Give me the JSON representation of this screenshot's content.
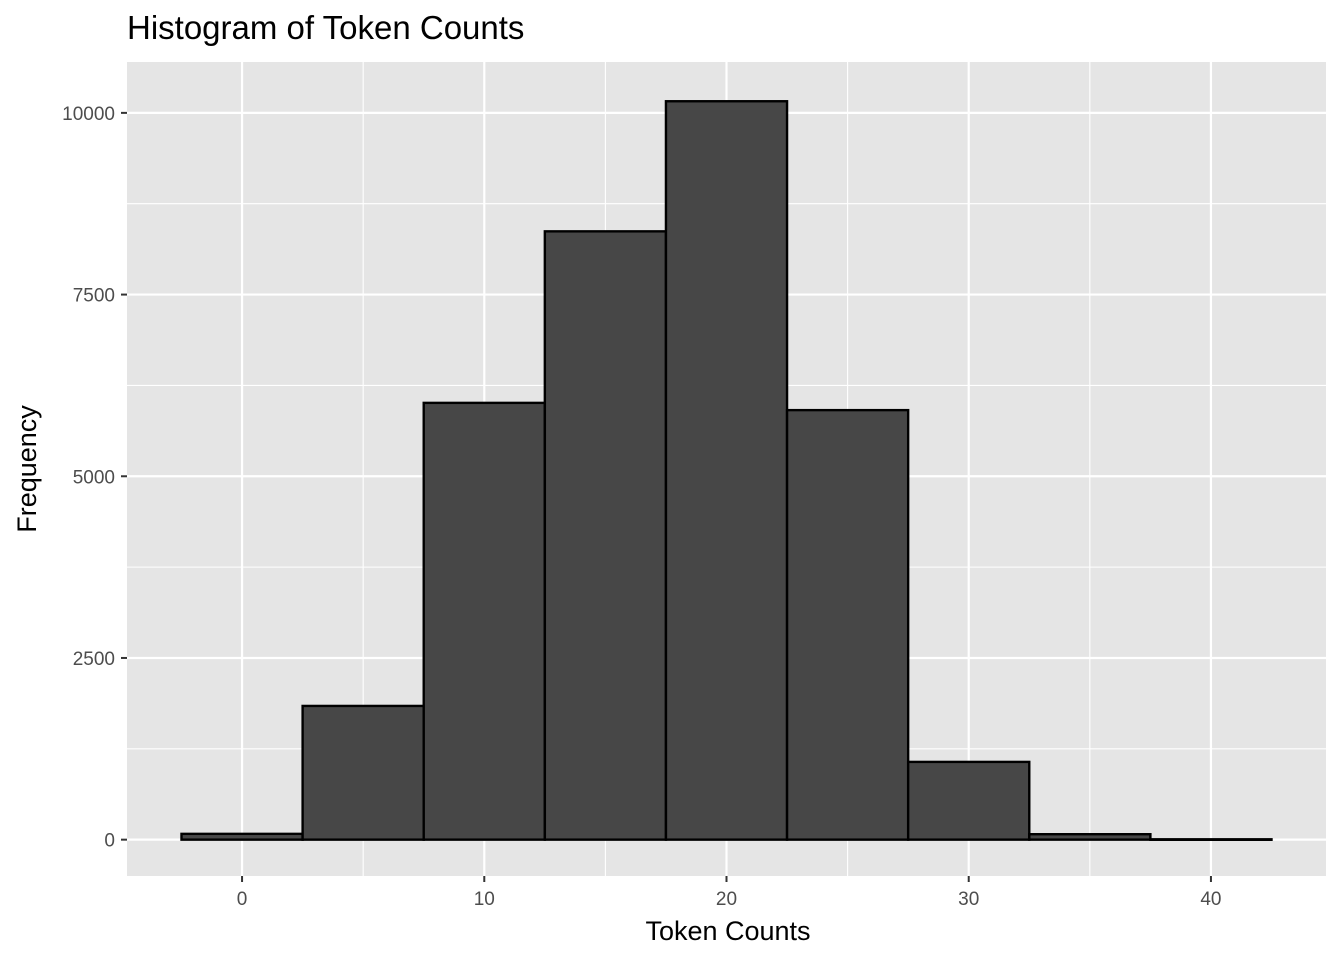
{
  "chart_data": {
    "type": "bar",
    "title": "Histogram of Token Counts",
    "xlabel": "Token Counts",
    "ylabel": "Frequency",
    "bin_width": 5,
    "bins": [
      {
        "start": -2.5,
        "end": 2.5,
        "count": 80
      },
      {
        "start": 2.5,
        "end": 7.5,
        "count": 1840
      },
      {
        "start": 7.5,
        "end": 12.5,
        "count": 6010
      },
      {
        "start": 12.5,
        "end": 17.5,
        "count": 8370
      },
      {
        "start": 17.5,
        "end": 22.5,
        "count": 10160
      },
      {
        "start": 22.5,
        "end": 27.5,
        "count": 5910
      },
      {
        "start": 27.5,
        "end": 32.5,
        "count": 1070
      },
      {
        "start": 32.5,
        "end": 37.5,
        "count": 75
      },
      {
        "start": 37.5,
        "end": 42.5,
        "count": 5
      }
    ],
    "x_ticks": [
      0,
      10,
      20,
      30,
      40
    ],
    "y_ticks": [
      0,
      2500,
      5000,
      7500,
      10000
    ],
    "xlim": [
      -4.75,
      44.75
    ],
    "ylim": [
      -500,
      10700
    ],
    "grid": true,
    "colors": {
      "panel_background": "#e5e5e5",
      "grid": "#ffffff",
      "bar_fill": "#474747",
      "bar_outline": "#000000",
      "tick_text": "#4d4d4d"
    }
  }
}
